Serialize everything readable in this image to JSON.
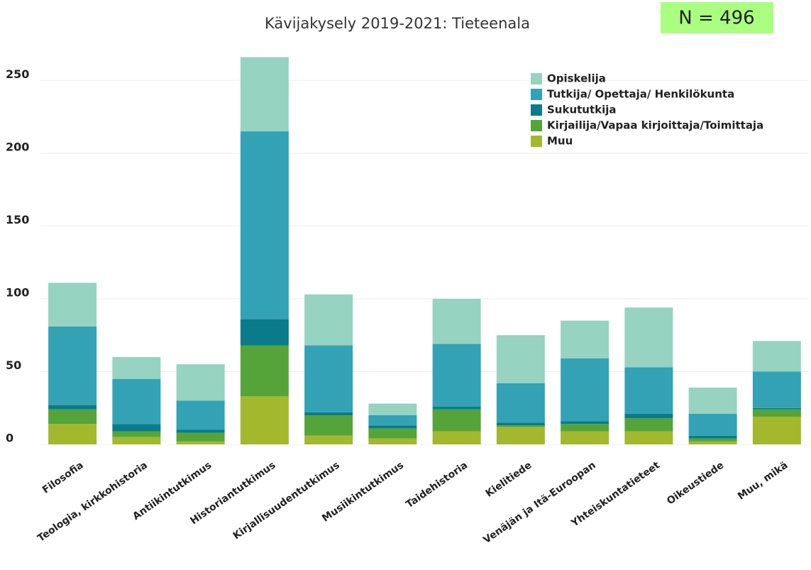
{
  "chart_data": {
    "type": "stacked_bar",
    "title": "Kävijakysely 2019-2021: Tieteenala",
    "annotation": "N = 496",
    "categories": [
      "Filosofia",
      "Teologia, kirkkohistoria",
      "Antiikintutkimus",
      "Historiantutkimus",
      "Kirjallisuudentutkimus",
      "Musiikintutkimus",
      "Taidehistoria",
      "Kielitiede",
      "Venäjän ja Itä-Euroopan",
      "Yhteiskuntatieteet",
      "Oikeustiede",
      "Muu, mikä"
    ],
    "series": [
      {
        "name": "Opiskelija",
        "color": "#96d3c1",
        "values": [
          30,
          15,
          25,
          51,
          35,
          8,
          31,
          33,
          26,
          41,
          18,
          21
        ]
      },
      {
        "name": "Tutkija/ Opettaja/ Henkilökunta",
        "color": "#33a2b5",
        "values": [
          54,
          31,
          20,
          129,
          46,
          7,
          43,
          27,
          43,
          32,
          15,
          25
        ]
      },
      {
        "name": "Sukututkija",
        "color": "#0a7b8a",
        "values": [
          3,
          5,
          2,
          18,
          2,
          2,
          2,
          2,
          2,
          3,
          2,
          1
        ]
      },
      {
        "name": "Kirjailija/Vapaa kirjoittaja/Toimittaja",
        "color": "#55a43a",
        "values": [
          10,
          4,
          6,
          35,
          14,
          7,
          15,
          1,
          5,
          9,
          2,
          5
        ]
      },
      {
        "name": "Muu",
        "color": "#a3b82d",
        "values": [
          14,
          5,
          2,
          33,
          6,
          4,
          9,
          12,
          9,
          9,
          2,
          19
        ]
      }
    ],
    "ylim": [
      0,
      275
    ],
    "yticks": [
      0,
      50,
      100,
      150,
      200,
      250
    ],
    "grid": true
  }
}
